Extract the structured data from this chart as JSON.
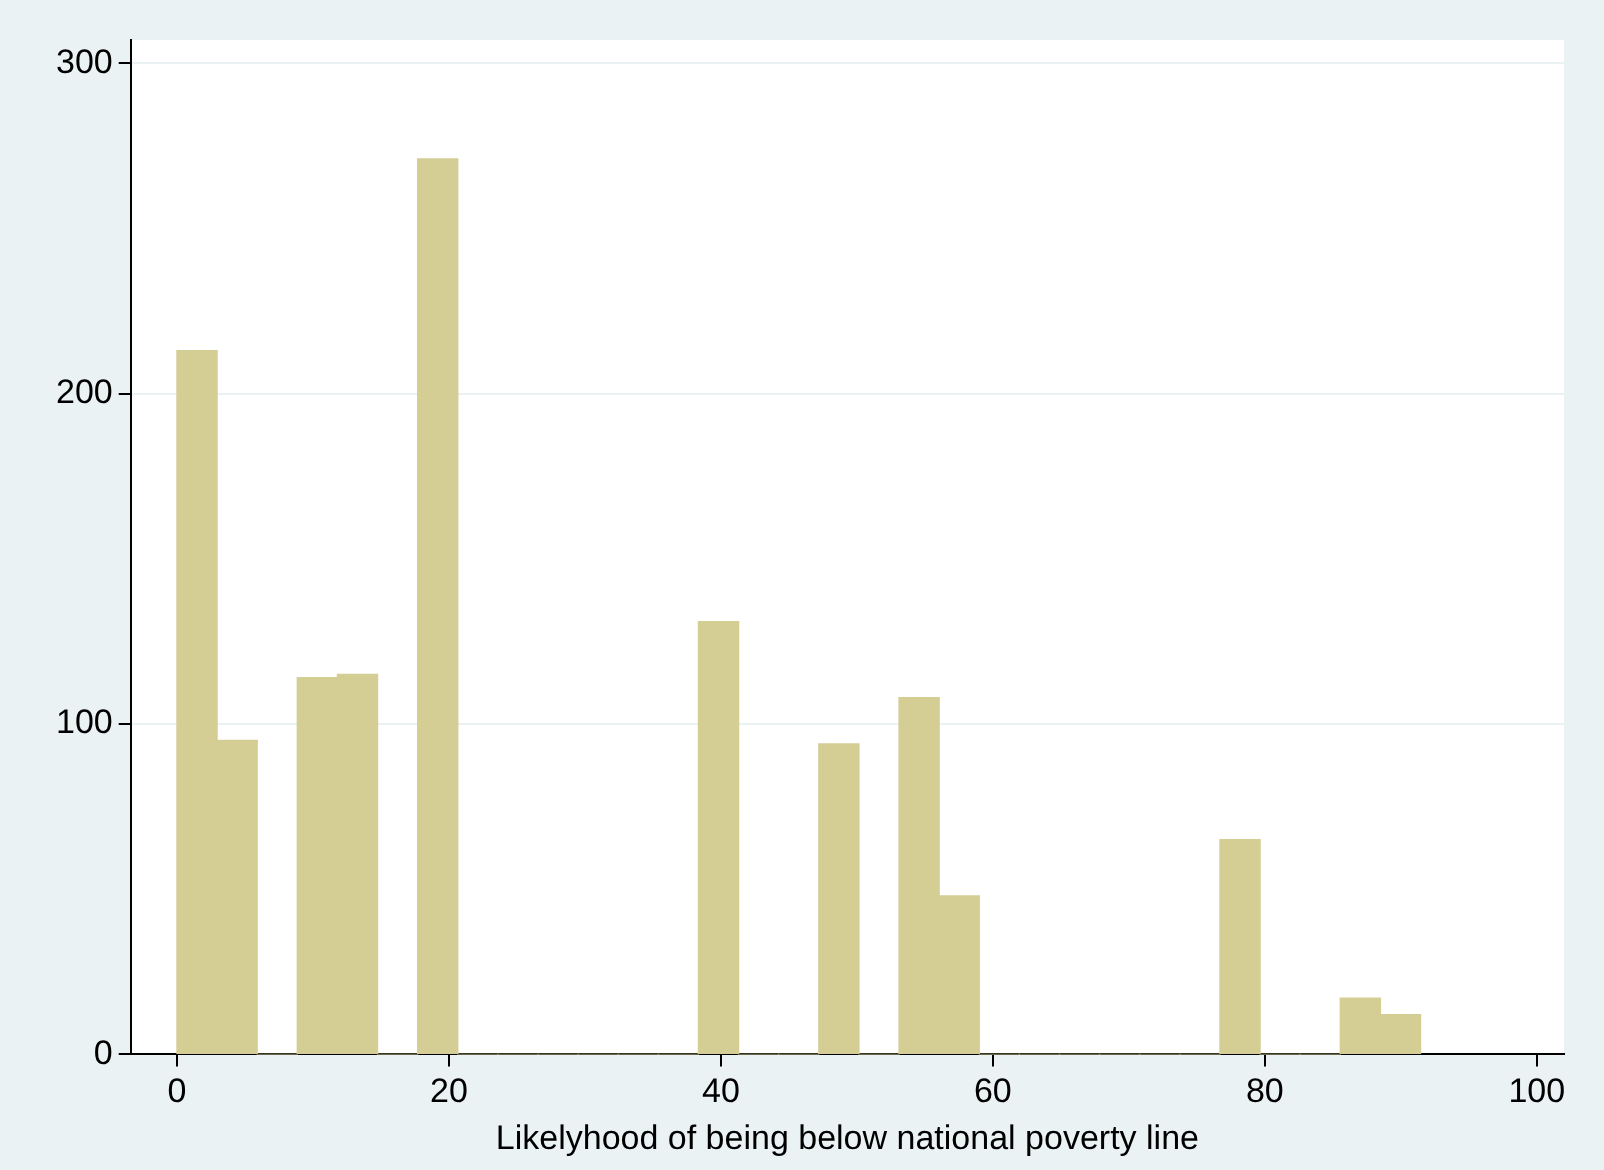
{
  "chart_data": {
    "type": "histogram",
    "xlabel": "Likelyhood of being below national poverty line",
    "bins": [
      0,
      2.95,
      5.9,
      8.85,
      11.8,
      14.75,
      17.7,
      20.65,
      23.6,
      26.55,
      29.5,
      32.45,
      35.4,
      38.35,
      41.3,
      44.25,
      47.2,
      50.15,
      53.1,
      56.05,
      59,
      61.95,
      64.9,
      67.85,
      70.8,
      73.75,
      76.7,
      79.65,
      82.6,
      85.55,
      88.5,
      91.45
    ],
    "values": [
      213,
      95,
      0,
      114,
      115,
      0,
      271,
      0,
      0,
      0,
      0,
      0,
      0,
      131,
      0,
      0,
      94,
      0,
      108,
      48,
      0,
      0,
      0,
      0,
      0,
      0,
      65,
      0,
      0,
      17,
      12
    ],
    "color": "#d4cd94",
    "xlim": [
      -3.4,
      102
    ],
    "xticks": [
      0,
      20,
      40,
      60,
      80,
      100
    ],
    "ylim": [
      0,
      307
    ],
    "yticks": [
      0,
      100,
      200,
      300
    ],
    "grid": "y",
    "legend": false
  }
}
